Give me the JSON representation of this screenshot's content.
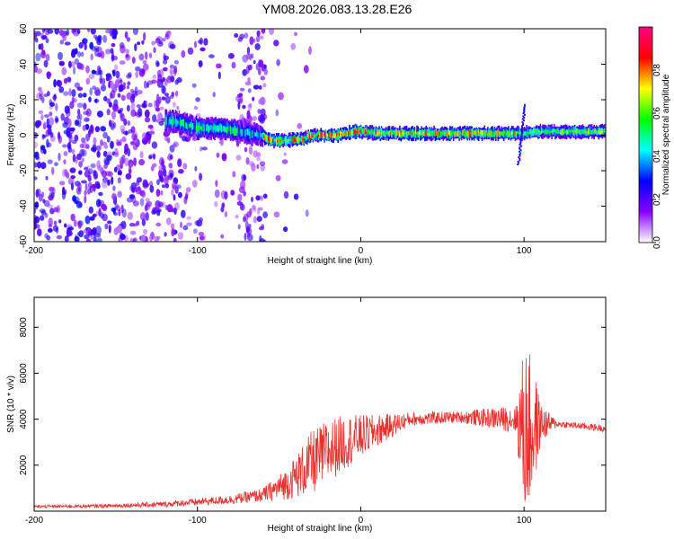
{
  "title": "YM08.2026.083.13.28.E26",
  "chart_data": [
    {
      "type": "heatmap",
      "name": "spectrogram",
      "xlabel": "Height of straight line (km)",
      "ylabel": "Frequency (Hz)",
      "xlim": [
        -200,
        150
      ],
      "ylim": [
        -60,
        60
      ],
      "xticks": [
        -200,
        -100,
        0,
        100
      ],
      "yticks": [
        -60,
        -40,
        -20,
        0,
        20,
        40,
        60
      ],
      "colorbar": {
        "label": "Normalized spectral amplitude",
        "range": [
          0.0,
          1.0
        ],
        "ticks": [
          0.0,
          0.2,
          0.4,
          0.6,
          0.8
        ],
        "colors": [
          "#ffffff",
          "#8800ff",
          "#0000ff",
          "#00ffff",
          "#00ff00",
          "#ffff00",
          "#ff0000",
          "#ff0088"
        ]
      },
      "ridge": [
        {
          "x": -115,
          "f": 8
        },
        {
          "x": -100,
          "f": 4
        },
        {
          "x": -85,
          "f": 4
        },
        {
          "x": -75,
          "f": 2
        },
        {
          "x": -62,
          "f": 0
        },
        {
          "x": -55,
          "f": -3
        },
        {
          "x": -45,
          "f": -3
        },
        {
          "x": -35,
          "f": -2
        },
        {
          "x": -30,
          "f": 0
        },
        {
          "x": -15,
          "f": 0
        },
        {
          "x": -5,
          "f": 2
        },
        {
          "x": 0,
          "f": 2
        },
        {
          "x": 10,
          "f": 1
        },
        {
          "x": 40,
          "f": 1
        },
        {
          "x": 80,
          "f": 1
        },
        {
          "x": 98,
          "f": 1
        },
        {
          "x": 110,
          "f": 2
        },
        {
          "x": 150,
          "f": 2
        }
      ]
    },
    {
      "type": "line",
      "name": "snr",
      "xlabel": "Height of straight line (km)",
      "ylabel": "SNR (10 * v/v)",
      "xlim": [
        -200,
        150
      ],
      "ylim": [
        0,
        9300
      ],
      "xticks": [
        -200,
        -100,
        0,
        100
      ],
      "yticks": [
        2000,
        4000,
        6000,
        8000
      ],
      "color": "#e8312f",
      "envelope": [
        {
          "x": -200,
          "base": 200,
          "amp": 60
        },
        {
          "x": -160,
          "base": 220,
          "amp": 80
        },
        {
          "x": -120,
          "base": 300,
          "amp": 120
        },
        {
          "x": -80,
          "base": 500,
          "amp": 200
        },
        {
          "x": -60,
          "base": 700,
          "amp": 300
        },
        {
          "x": -45,
          "base": 1200,
          "amp": 700
        },
        {
          "x": -30,
          "base": 2100,
          "amp": 1400
        },
        {
          "x": -20,
          "base": 2600,
          "amp": 1400
        },
        {
          "x": -10,
          "base": 3000,
          "amp": 1200
        },
        {
          "x": 10,
          "base": 3500,
          "amp": 700
        },
        {
          "x": 30,
          "base": 4000,
          "amp": 300
        },
        {
          "x": 60,
          "base": 4100,
          "amp": 250
        },
        {
          "x": 95,
          "base": 4000,
          "amp": 600
        },
        {
          "x": 100,
          "base": 3500,
          "amp": 3800
        },
        {
          "x": 105,
          "base": 3500,
          "amp": 3200
        },
        {
          "x": 110,
          "base": 3800,
          "amp": 900
        },
        {
          "x": 120,
          "base": 3800,
          "amp": 150
        },
        {
          "x": 150,
          "base": 3600,
          "amp": 150
        }
      ]
    }
  ]
}
